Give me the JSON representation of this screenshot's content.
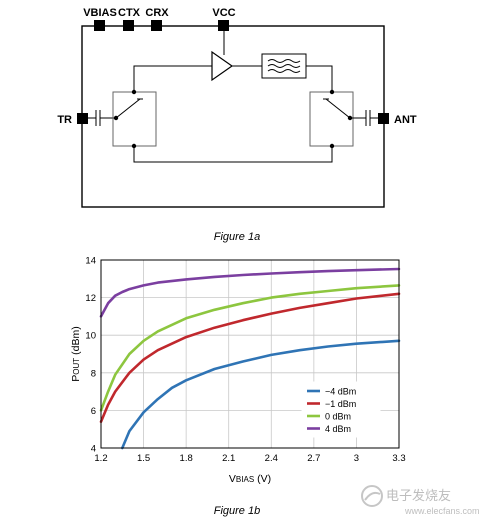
{
  "figure_a": {
    "caption": "Figure 1a",
    "pins": {
      "vbias": "VBIAS",
      "ctx": "CTX",
      "crx": "CRX",
      "vcc": "VCC",
      "tr": "TR",
      "ant": "ANT"
    }
  },
  "figure_b": {
    "caption": "Figure 1b"
  },
  "watermark": {
    "text": "电子发烧友",
    "url": "www.elecfans.com"
  },
  "chart_data": {
    "type": "line",
    "title": "",
    "xlabel": "VBIAS (V)",
    "xlabel_main": "V",
    "xlabel_sub": "BIAS",
    "xlabel_unit": " (V)",
    "ylabel": "POUT (dBm)",
    "ylabel_main": "P",
    "ylabel_sub": "OUT",
    "ylabel_unit": " (dBm)",
    "xlim": [
      1.2,
      3.3
    ],
    "ylim": [
      4,
      14
    ],
    "xticks": [
      1.2,
      1.5,
      1.8,
      2.1,
      2.4,
      2.7,
      3,
      3.3
    ],
    "xtick_labels": [
      "1.2",
      "1.5",
      "1.8",
      "2.1",
      "2.4",
      "2.7",
      "3",
      "3.3"
    ],
    "yticks": [
      4,
      6,
      8,
      10,
      12,
      14
    ],
    "ytick_labels": [
      "4",
      "6",
      "8",
      "10",
      "12",
      "14"
    ],
    "grid": true,
    "legend_position": "bottom-right",
    "series": [
      {
        "name": "−4 dBm",
        "color": "#2f74b5",
        "x": [
          1.35,
          1.4,
          1.5,
          1.6,
          1.7,
          1.8,
          2.0,
          2.2,
          2.4,
          2.6,
          2.8,
          3.0,
          3.3
        ],
        "y": [
          4.0,
          4.9,
          5.9,
          6.6,
          7.2,
          7.6,
          8.2,
          8.6,
          8.95,
          9.2,
          9.4,
          9.55,
          9.7
        ]
      },
      {
        "name": "−1 dBm",
        "color": "#c0282d",
        "x": [
          1.2,
          1.25,
          1.3,
          1.4,
          1.5,
          1.6,
          1.8,
          2.0,
          2.2,
          2.4,
          2.6,
          2.8,
          3.0,
          3.3
        ],
        "y": [
          5.4,
          6.3,
          7.0,
          8.0,
          8.7,
          9.2,
          9.9,
          10.4,
          10.8,
          11.15,
          11.45,
          11.7,
          11.95,
          12.2
        ]
      },
      {
        "name": "0 dBm",
        "color": "#8dc63f",
        "x": [
          1.2,
          1.25,
          1.3,
          1.4,
          1.5,
          1.6,
          1.8,
          2.0,
          2.2,
          2.4,
          2.6,
          2.8,
          3.0,
          3.3
        ],
        "y": [
          6.0,
          7.0,
          7.9,
          9.0,
          9.7,
          10.2,
          10.9,
          11.35,
          11.7,
          12.0,
          12.2,
          12.35,
          12.5,
          12.65
        ]
      },
      {
        "name": "4 dBm",
        "color": "#7b3fa0",
        "x": [
          1.2,
          1.25,
          1.3,
          1.35,
          1.4,
          1.5,
          1.6,
          1.8,
          2.0,
          2.2,
          2.4,
          2.6,
          2.8,
          3.0,
          3.3
        ],
        "y": [
          11.0,
          11.7,
          12.1,
          12.3,
          12.45,
          12.65,
          12.8,
          12.97,
          13.1,
          13.2,
          13.28,
          13.35,
          13.41,
          13.46,
          13.52
        ]
      }
    ]
  }
}
